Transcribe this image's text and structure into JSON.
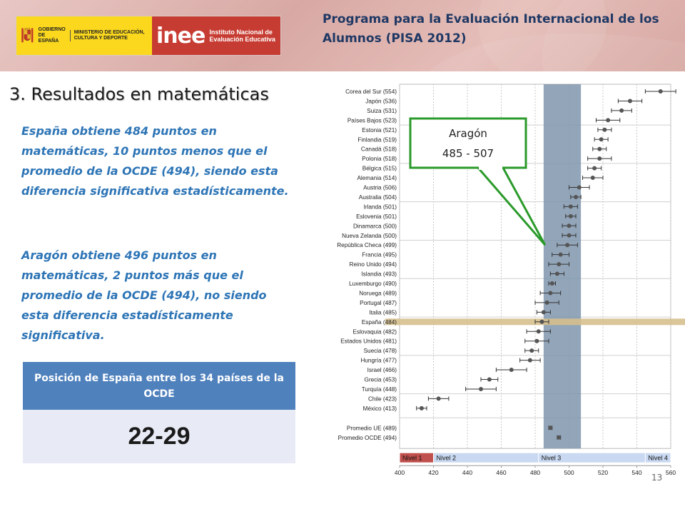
{
  "header": {
    "gob_text": "GOBIERNO DE ESPAÑA",
    "ministry_text": "MINISTERIO DE EDUCACIÓN, CULTURA Y DEPORTE",
    "inee_logo": "inee",
    "inee_text": "Instituto Nacional de Evaluación Educativa",
    "program_title": "Programa para la Evaluación Internacional de los Alumnos (PISA 2012)"
  },
  "section_title": "3. Resultados en matemáticas",
  "paragraphs": [
    "España obtiene 484 puntos en matemáticas, 10 puntos menos que el promedio de la OCDE (494), siendo esta diferencia significativa estadísticamente.",
    "Aragón obtiene 496 puntos en matemáticas, 2 puntos más que el promedio de la OCDE (494), no siendo esta diferencia estadísticamente significativa."
  ],
  "position_box": {
    "header": "Posición de España entre los 34 países de la OCDE",
    "value": "22-29"
  },
  "callout": {
    "title": "Aragón",
    "range": "485 - 507"
  },
  "page_number": "13",
  "colors": {
    "blue_text": "#2e75b6",
    "header_blue": "#4f81bd",
    "spain_band": "#d6c08d",
    "aragon_band": "#7f95ad",
    "callout_border": "#2a9a2a",
    "nivel1": "#c0504d",
    "nivel_other": "#c9d9f1"
  },
  "chart_data": {
    "type": "scatter",
    "title": "",
    "xlim": [
      400,
      560
    ],
    "x_ticks": [
      400,
      420,
      440,
      460,
      480,
      500,
      520,
      540,
      560
    ],
    "grid": true,
    "highlight_band_x": [
      485,
      507
    ],
    "highlight_row": "España (484)",
    "levels": [
      {
        "label": "Nivel 1",
        "from": 400,
        "to": 420
      },
      {
        "label": "Nivel 2",
        "from": 420,
        "to": 482
      },
      {
        "label": "Nivel 3",
        "from": 482,
        "to": 545
      },
      {
        "label": "Nivel 4",
        "from": 545,
        "to": 560
      }
    ],
    "countries": [
      {
        "label": "Corea del Sur (554)",
        "value": 554,
        "ci": [
          545,
          563
        ]
      },
      {
        "label": "Japón (536)",
        "value": 536,
        "ci": [
          529,
          543
        ]
      },
      {
        "label": "Suiza (531)",
        "value": 531,
        "ci": [
          525,
          537
        ]
      },
      {
        "label": "Países Bajos (523)",
        "value": 523,
        "ci": [
          516,
          530
        ]
      },
      {
        "label": "Estonia (521)",
        "value": 521,
        "ci": [
          517,
          525
        ]
      },
      {
        "label": "Finlandia (519)",
        "value": 519,
        "ci": [
          515,
          523
        ]
      },
      {
        "label": "Canadá (518)",
        "value": 518,
        "ci": [
          514,
          522
        ]
      },
      {
        "label": "Polonia (518)",
        "value": 518,
        "ci": [
          511,
          525
        ]
      },
      {
        "label": "Bélgica (515)",
        "value": 515,
        "ci": [
          511,
          519
        ]
      },
      {
        "label": "Alemania (514)",
        "value": 514,
        "ci": [
          508,
          520
        ]
      },
      {
        "label": "Austria (506)",
        "value": 506,
        "ci": [
          500,
          512
        ]
      },
      {
        "label": "Australia (504)",
        "value": 504,
        "ci": [
          501,
          507
        ]
      },
      {
        "label": "Irlanda (501)",
        "value": 501,
        "ci": [
          497,
          505
        ]
      },
      {
        "label": "Eslovenia (501)",
        "value": 501,
        "ci": [
          498,
          504
        ]
      },
      {
        "label": "Dinamarca (500)",
        "value": 500,
        "ci": [
          496,
          504
        ]
      },
      {
        "label": "Nueva Zelanda (500)",
        "value": 500,
        "ci": [
          496,
          504
        ]
      },
      {
        "label": "República Checa (499)",
        "value": 499,
        "ci": [
          493,
          505
        ]
      },
      {
        "label": "Francia (495)",
        "value": 495,
        "ci": [
          490,
          500
        ]
      },
      {
        "label": "Reino Unido (494)",
        "value": 494,
        "ci": [
          488,
          500
        ]
      },
      {
        "label": "Islandia (493)",
        "value": 493,
        "ci": [
          489,
          497
        ]
      },
      {
        "label": "Luxemburgo (490)",
        "value": 490,
        "ci": [
          488,
          492
        ]
      },
      {
        "label": "Noruega (489)",
        "value": 489,
        "ci": [
          483,
          495
        ]
      },
      {
        "label": "Portugal (487)",
        "value": 487,
        "ci": [
          480,
          494
        ]
      },
      {
        "label": "Italia (485)",
        "value": 485,
        "ci": [
          481,
          489
        ]
      },
      {
        "label": "España (484)",
        "value": 484,
        "ci": [
          480,
          488
        ]
      },
      {
        "label": "Eslovaquia (482)",
        "value": 482,
        "ci": [
          475,
          489
        ]
      },
      {
        "label": "Estados Unidos (481)",
        "value": 481,
        "ci": [
          474,
          488
        ]
      },
      {
        "label": "Suecia (478)",
        "value": 478,
        "ci": [
          474,
          482
        ]
      },
      {
        "label": "Hungría (477)",
        "value": 477,
        "ci": [
          471,
          483
        ]
      },
      {
        "label": "Israel (466)",
        "value": 466,
        "ci": [
          457,
          475
        ]
      },
      {
        "label": "Grecia (453)",
        "value": 453,
        "ci": [
          448,
          458
        ]
      },
      {
        "label": "Turquía (448)",
        "value": 448,
        "ci": [
          439,
          457
        ]
      },
      {
        "label": "Chile (423)",
        "value": 423,
        "ci": [
          417,
          429
        ]
      },
      {
        "label": "México (413)",
        "value": 413,
        "ci": [
          410,
          416
        ]
      }
    ],
    "averages": [
      {
        "label": "Promedio UE (489)",
        "value": 489,
        "ci": [
          488,
          490
        ]
      },
      {
        "label": "Promedio OCDE (494)",
        "value": 494,
        "ci": [
          493,
          495
        ]
      }
    ]
  }
}
